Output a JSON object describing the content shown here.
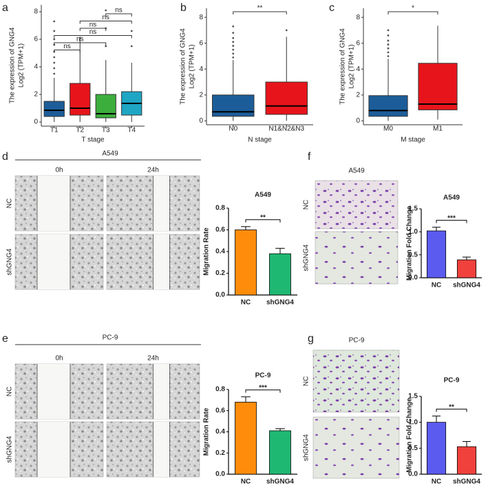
{
  "chart_data": [
    {
      "type": "box",
      "panel": "a",
      "xlabel": "T stage",
      "ylabel": [
        "The expression of GNG4",
        "Log2 (TPM+1)"
      ],
      "categories": [
        "T1",
        "T2",
        "T3",
        "T4"
      ],
      "boxes": [
        {
          "color": "#1c5d99",
          "whisker_low": 0,
          "q1": 0.4,
          "median": 0.85,
          "q3": 1.5,
          "whisker_high": 3.2,
          "outliers": [
            3.5,
            3.9,
            4.3,
            4.7,
            5.1,
            5.6,
            6.0,
            6.6,
            7.3
          ]
        },
        {
          "color": "#e8141b",
          "whisker_low": 0,
          "q1": 0.5,
          "median": 1.0,
          "q3": 2.8,
          "whisker_high": 6.2,
          "outliers": []
        },
        {
          "color": "#3cae3c",
          "whisker_low": 0,
          "q1": 0.3,
          "median": 0.6,
          "q3": 2.0,
          "whisker_high": 4.5,
          "outliers": [
            5.5,
            6.8,
            8.1
          ]
        },
        {
          "color": "#1ea6c4",
          "whisker_low": 0,
          "q1": 0.5,
          "median": 1.35,
          "q3": 2.2,
          "whisker_high": 4.3,
          "outliers": [
            5.5,
            6.6
          ]
        }
      ],
      "comparisons": [
        {
          "from": "T1",
          "to": "T2",
          "label": "ns"
        },
        {
          "from": "T1",
          "to": "T3",
          "label": "ns"
        },
        {
          "from": "T1",
          "to": "T4",
          "label": "ns"
        },
        {
          "from": "T2",
          "to": "T3",
          "label": "ns"
        },
        {
          "from": "T2",
          "to": "T4",
          "label": "ns"
        },
        {
          "from": "T3",
          "to": "T4",
          "label": "ns"
        }
      ],
      "ylim": [
        -0.3,
        8.5
      ],
      "yticks": [
        0,
        2,
        4,
        6,
        8
      ]
    },
    {
      "type": "box",
      "panel": "b",
      "xlabel": "N stage",
      "ylabel": [
        "The expression of GNG4",
        "Log2 (TPM+1)"
      ],
      "categories": [
        "N0",
        "N1&N2&N3"
      ],
      "boxes": [
        {
          "color": "#1c5d99",
          "whisker_low": 0,
          "q1": 0.35,
          "median": 0.7,
          "q3": 2.0,
          "whisker_high": 4.7,
          "outliers": [
            4.9,
            5.2,
            5.5,
            5.8,
            6.1,
            6.4,
            6.8,
            7.3
          ]
        },
        {
          "color": "#e8141b",
          "whisker_low": 0,
          "q1": 0.5,
          "median": 1.15,
          "q3": 3.0,
          "whisker_high": 6.5,
          "outliers": [
            7.0
          ]
        }
      ],
      "comparisons": [
        {
          "from": "N0",
          "to": "N1&N2&N3",
          "label": "**"
        }
      ],
      "ylim": [
        -0.3,
        8.7
      ],
      "yticks": [
        0,
        2,
        4,
        6,
        8
      ]
    },
    {
      "type": "box",
      "panel": "c",
      "xlabel": "M stage",
      "ylabel": [
        "The expression of GNG4",
        "Log2 (TPM+1)"
      ],
      "categories": [
        "M0",
        "M1"
      ],
      "boxes": [
        {
          "color": "#1c5d99",
          "whisker_low": 0,
          "q1": 0.35,
          "median": 0.8,
          "q3": 1.95,
          "whisker_high": 4.8,
          "outliers": [
            5.0,
            5.3,
            5.6,
            5.9,
            6.2,
            6.6,
            7.0
          ]
        },
        {
          "color": "#e8141b",
          "whisker_low": 0.1,
          "q1": 0.85,
          "median": 1.3,
          "q3": 4.45,
          "whisker_high": 7.35,
          "outliers": []
        }
      ],
      "comparisons": [
        {
          "from": "M0",
          "to": "M1",
          "label": "*"
        }
      ],
      "ylim": [
        -0.3,
        8.7
      ],
      "yticks": [
        0,
        2,
        4,
        6,
        8
      ]
    },
    {
      "type": "bar",
      "panel": "d",
      "title": "A549",
      "ylabel": "Migration Rate",
      "significance": "**",
      "categories": [
        "NC",
        "shGNG4"
      ],
      "values": [
        0.6,
        0.38
      ],
      "errors": [
        0.03,
        0.05
      ],
      "colors": [
        "#ff8c0a",
        "#1fb873"
      ],
      "ylim": [
        0,
        0.8
      ],
      "yticks": [
        {
          "value": 0,
          "label": "0.0"
        },
        0.2,
        0.4,
        0.6,
        0.8
      ]
    },
    {
      "type": "bar",
      "panel": "e",
      "title": "PC-9",
      "ylabel": "Migration Rate",
      "significance": "***",
      "categories": [
        "NC",
        "shGNG4"
      ],
      "values": [
        0.68,
        0.41
      ],
      "errors": [
        0.05,
        0.02
      ],
      "colors": [
        "#ff8c0a",
        "#1fb873"
      ],
      "ylim": [
        0,
        0.8
      ],
      "yticks": [
        {
          "value": 0,
          "label": "0.0"
        },
        0.2,
        0.4,
        0.6,
        0.8
      ]
    },
    {
      "type": "bar",
      "panel": "f",
      "title": "A549",
      "ylabel": "Migration Fold Change",
      "significance": "***",
      "categories": [
        "NC",
        "shGNG4"
      ],
      "values": [
        1.02,
        0.39
      ],
      "errors": [
        0.08,
        0.06
      ],
      "colors": [
        "#5b5bf0",
        "#f0413c"
      ],
      "ylim": [
        0,
        1.5
      ],
      "yticks": [
        {
          "value": 0,
          "label": "0.0"
        },
        0.5,
        {
          "value": 1,
          "label": "1.0"
        },
        1.5
      ]
    },
    {
      "type": "bar",
      "panel": "g",
      "title": "PC-9",
      "ylabel": "Migration Fold Change",
      "significance": "**",
      "categories": [
        "NC",
        "shGNG4"
      ],
      "values": [
        1.0,
        0.53
      ],
      "errors": [
        0.12,
        0.1
      ],
      "colors": [
        "#5b5bf0",
        "#f0413c"
      ],
      "ylim": [
        0,
        1.5
      ],
      "yticks": [
        {
          "value": 0,
          "label": "0.0"
        },
        0.5,
        {
          "value": 1,
          "label": "1.0"
        },
        1.5
      ]
    }
  ],
  "image_panels": [
    {
      "panel": "d",
      "title": "A549",
      "columns": [
        "0h",
        "24h"
      ],
      "rows": [
        "NC",
        "shGNG4"
      ]
    },
    {
      "panel": "e",
      "title": "PC-9",
      "columns": [
        "0h",
        "24h"
      ],
      "rows": [
        "NC",
        "shGNG4"
      ]
    },
    {
      "panel": "f",
      "title": "A549",
      "rows": [
        "NC",
        "shGNG4"
      ]
    },
    {
      "panel": "g",
      "title": "PC-9",
      "rows": [
        "NC",
        "shGNG4"
      ]
    }
  ]
}
